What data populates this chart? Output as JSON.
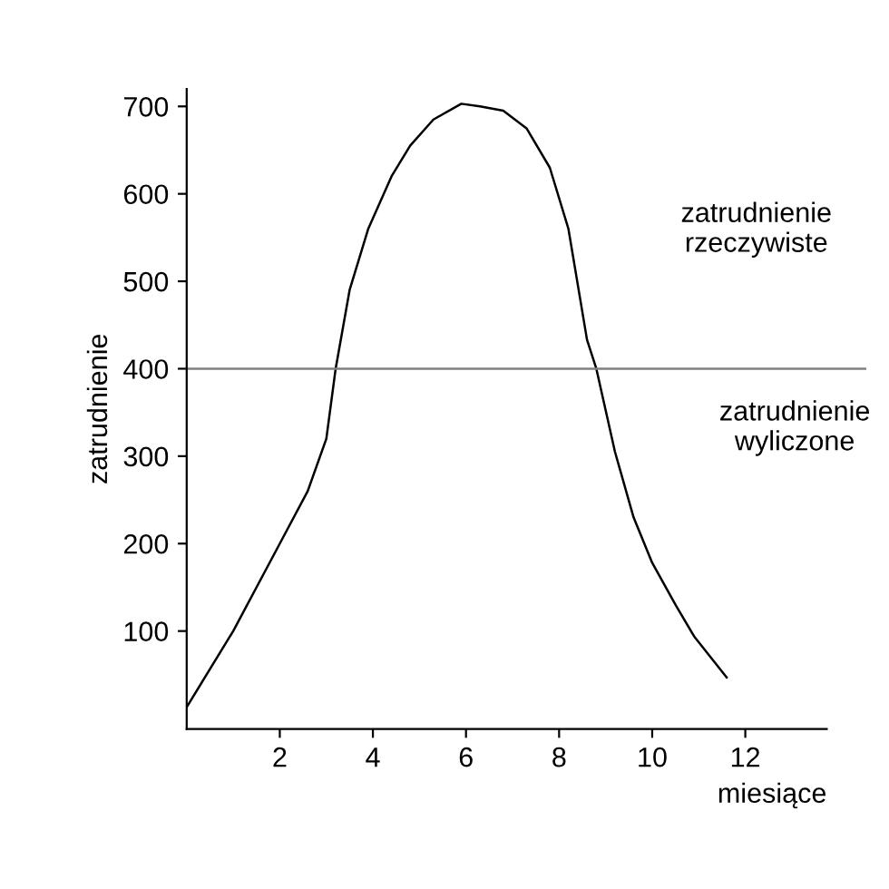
{
  "chart_data": {
    "type": "line",
    "xlabel": "miesiące",
    "ylabel": "zatrudnienie",
    "xlim": [
      0,
      13.75
    ],
    "ylim": [
      -12,
      720
    ],
    "xticks": [
      2,
      4,
      6,
      8,
      10,
      12
    ],
    "yticks": [
      100,
      200,
      300,
      400,
      500,
      600,
      700
    ],
    "series": [
      {
        "name": "zatrudnienie\nrzeczywiste",
        "color": "#000000",
        "x": [
          0,
          1,
          2,
          2.6,
          3.0,
          3.2,
          3.5,
          3.9,
          4.4,
          4.8,
          5.3,
          5.9,
          6.3,
          6.8,
          7.3,
          7.8,
          8.2,
          8.6,
          8.8,
          9.2,
          9.6,
          10,
          10.5,
          10.9,
          11.6
        ],
        "values": [
          13,
          100,
          200,
          260,
          320,
          400,
          490,
          560,
          620,
          655,
          685,
          703,
          700,
          695,
          675,
          630,
          560,
          433,
          400,
          305,
          230,
          178,
          130,
          94,
          47
        ]
      }
    ],
    "ref_lines": [
      {
        "axis": "y",
        "value": 400,
        "label": "zatrudnienie\nwyliczone",
        "color": "#808080"
      }
    ],
    "grid": false,
    "legend": false,
    "marker": "none",
    "line_style": "solid"
  }
}
